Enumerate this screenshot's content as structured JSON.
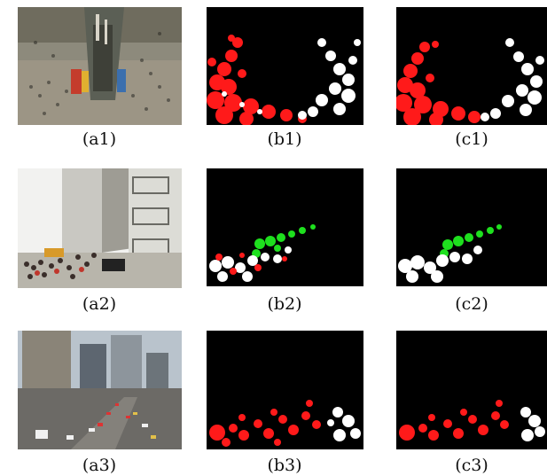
{
  "figure": {
    "captions": {
      "a1": "(a1)",
      "b1": "(b1)",
      "c1": "(c1)",
      "a2": "(a2)",
      "b2": "(b2)",
      "c2": "(c2)",
      "a3": "(a3)",
      "b3": "(b3)",
      "c3": "(c3)"
    },
    "colors": {
      "mask_background": "#000000",
      "group_red": "#ff1a1a",
      "group_white": "#ffffff",
      "group_green": "#1ee01e"
    }
  }
}
